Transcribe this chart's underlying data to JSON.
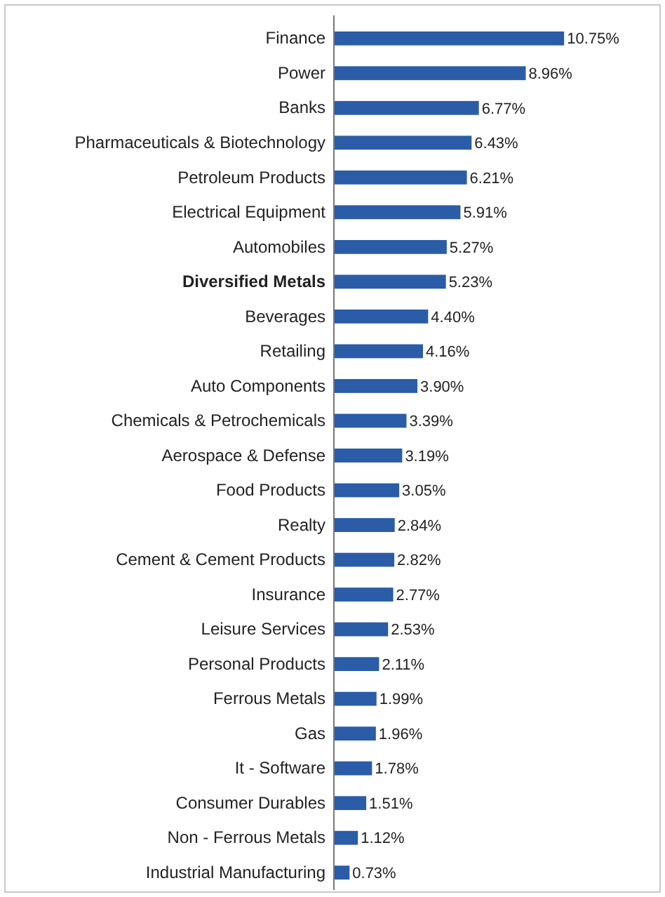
{
  "chart_data": {
    "type": "bar",
    "orientation": "horizontal",
    "categories": [
      "Finance",
      "Power",
      "Banks",
      "Pharmaceuticals & Biotechnology",
      "Petroleum Products",
      "Electrical Equipment",
      "Automobiles",
      "Diversified Metals",
      "Beverages",
      "Retailing",
      "Auto Components",
      "Chemicals & Petrochemicals",
      "Aerospace & Defense",
      "Food Products",
      "Realty",
      "Cement & Cement Products",
      "Insurance",
      "Leisure Services",
      "Personal Products",
      "Ferrous Metals",
      "Gas",
      "It - Software",
      "Consumer Durables",
      "Non - Ferrous Metals",
      "Industrial Manufacturing"
    ],
    "values": [
      10.75,
      8.96,
      6.77,
      6.43,
      6.21,
      5.91,
      5.27,
      5.23,
      4.4,
      4.16,
      3.9,
      3.39,
      3.19,
      3.05,
      2.84,
      2.82,
      2.77,
      2.53,
      2.11,
      1.99,
      1.96,
      1.78,
      1.51,
      1.12,
      0.73
    ],
    "value_labels": [
      "10.75%",
      "8.96%",
      "6.77%",
      "6.43%",
      "6.21%",
      "5.91%",
      "5.27%",
      "5.23%",
      "4.40%",
      "4.16%",
      "3.90%",
      "3.39%",
      "3.19%",
      "3.05%",
      "2.84%",
      "2.82%",
      "2.77%",
      "2.53%",
      "2.11%",
      "1.99%",
      "1.96%",
      "1.78%",
      "1.51%",
      "1.12%",
      "0.73%"
    ],
    "color": "#2a5ca8",
    "xlim": [
      0,
      15.2
    ],
    "tick_labels": "y"
  }
}
